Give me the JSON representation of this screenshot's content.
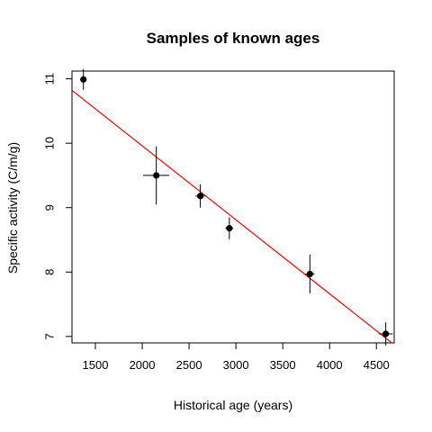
{
  "chart_data": {
    "type": "scatter",
    "title": "Samples of known ages",
    "xlabel": "Historical age (years)",
    "ylabel": "Specific activity (C/m/g)",
    "xlim": [
      1250,
      4690
    ],
    "ylim": [
      6.9,
      11.12
    ],
    "xticks": [
      1500,
      2000,
      2500,
      3000,
      3500,
      4000,
      4500
    ],
    "yticks": [
      7,
      8,
      9,
      10,
      11
    ],
    "grid": false,
    "legend": "none",
    "points": [
      {
        "x": 1372,
        "y": 10.99,
        "x_err": 30,
        "y_err": 0.16
      },
      {
        "x": 2150,
        "y": 9.5,
        "x_err": 140,
        "y_err": 0.45
      },
      {
        "x": 2620,
        "y": 9.18,
        "x_err": 50,
        "y_err": 0.18
      },
      {
        "x": 2930,
        "y": 8.68,
        "x_err": 40,
        "y_err": 0.17
      },
      {
        "x": 3790,
        "y": 7.97,
        "x_err": 50,
        "y_err": 0.3
      },
      {
        "x": 4600,
        "y": 7.04,
        "x_err": 75,
        "y_err": 0.18
      }
    ],
    "fit_line": {
      "x": [
        1250,
        4690
      ],
      "y": [
        10.82,
        6.87
      ],
      "color": "#ff0000"
    },
    "point_color": "#000000"
  }
}
